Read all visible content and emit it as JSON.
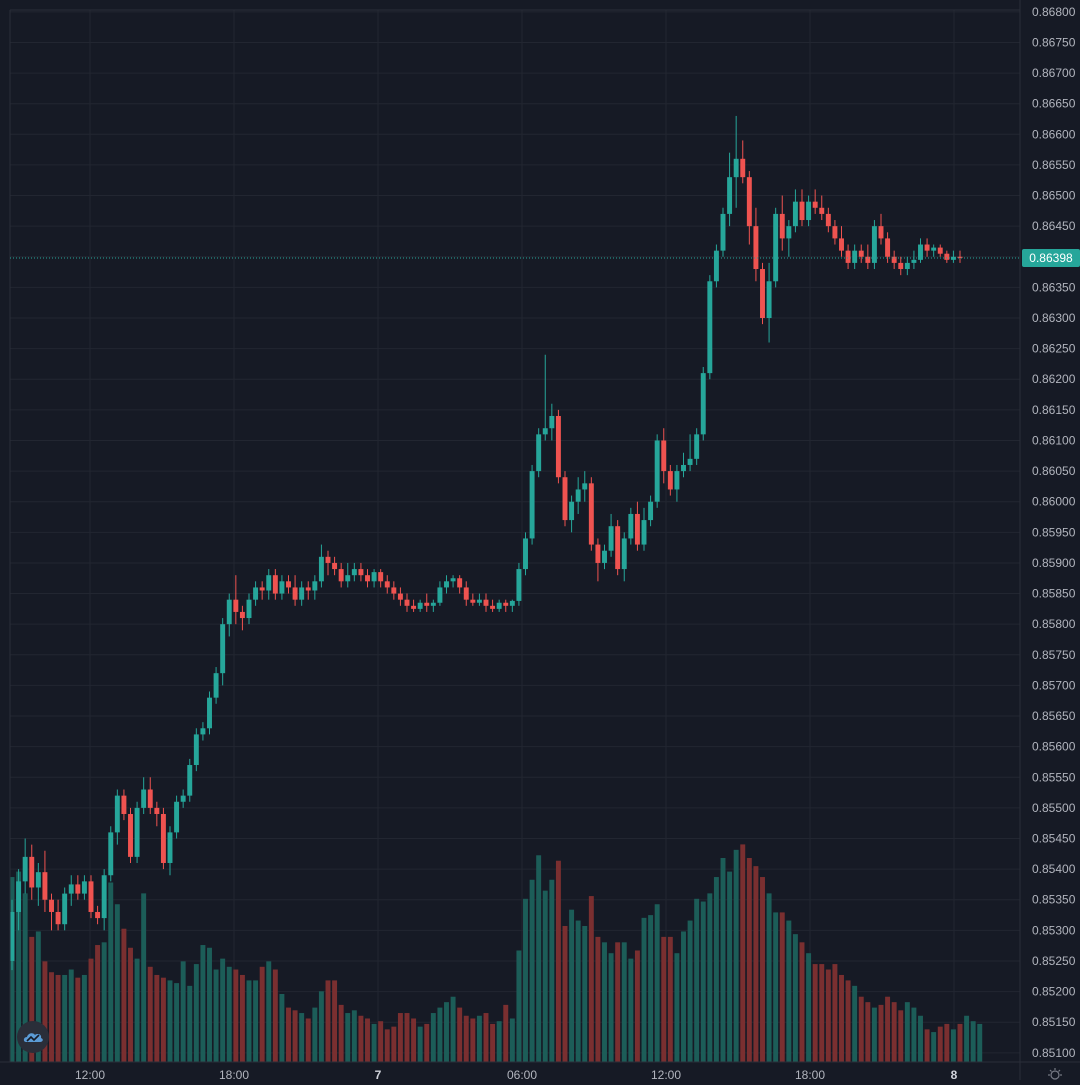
{
  "chart_data": {
    "type": "candlestick",
    "symbol_price_last": "0.86398",
    "x_ticks": [
      "12:00",
      "18:00",
      "7",
      "06:00",
      "12:00",
      "18:00",
      "8"
    ],
    "bold_x_ticks": [
      "7",
      "8"
    ],
    "y_ticks": [
      "0.86800",
      "0.86750",
      "0.86700",
      "0.86650",
      "0.86600",
      "0.86550",
      "0.86500",
      "0.86450",
      "0.86400",
      "0.86350",
      "0.86300",
      "0.86250",
      "0.86200",
      "0.86150",
      "0.86100",
      "0.86050",
      "0.86000",
      "0.85950",
      "0.85900",
      "0.85850",
      "0.85800",
      "0.85750",
      "0.85700",
      "0.85650",
      "0.85600",
      "0.85550",
      "0.85500",
      "0.85450",
      "0.85400",
      "0.85350",
      "0.85300",
      "0.85250",
      "0.85200",
      "0.85150",
      "0.85100"
    ],
    "ylim": [
      0.85085,
      0.86803
    ],
    "price_line": 0.86398,
    "candles": [
      [
        0.8525,
        0.8535,
        0.85235,
        0.8533
      ],
      [
        0.8533,
        0.854,
        0.853,
        0.8538
      ],
      [
        0.8538,
        0.8545,
        0.8536,
        0.8542
      ],
      [
        0.8542,
        0.8544,
        0.8535,
        0.8537
      ],
      [
        0.8537,
        0.8541,
        0.8534,
        0.85395
      ],
      [
        0.85395,
        0.8543,
        0.8533,
        0.8535
      ],
      [
        0.8535,
        0.8536,
        0.853,
        0.8533
      ],
      [
        0.8533,
        0.8535,
        0.853,
        0.8531
      ],
      [
        0.8531,
        0.8537,
        0.853,
        0.8536
      ],
      [
        0.8536,
        0.8539,
        0.8534,
        0.85375
      ],
      [
        0.85375,
        0.8539,
        0.8535,
        0.8536
      ],
      [
        0.8536,
        0.8539,
        0.8535,
        0.8538
      ],
      [
        0.8538,
        0.8539,
        0.8532,
        0.8533
      ],
      [
        0.8533,
        0.8534,
        0.8531,
        0.8532
      ],
      [
        0.8532,
        0.854,
        0.853,
        0.8539
      ],
      [
        0.8539,
        0.8547,
        0.8538,
        0.8546
      ],
      [
        0.8546,
        0.8553,
        0.8544,
        0.8552
      ],
      [
        0.8552,
        0.8553,
        0.8548,
        0.8549
      ],
      [
        0.8549,
        0.855,
        0.8541,
        0.8542
      ],
      [
        0.8542,
        0.8551,
        0.8541,
        0.855
      ],
      [
        0.855,
        0.8555,
        0.8549,
        0.8553
      ],
      [
        0.8553,
        0.8555,
        0.8549,
        0.855
      ],
      [
        0.855,
        0.8551,
        0.8547,
        0.8549
      ],
      [
        0.8549,
        0.855,
        0.854,
        0.8541
      ],
      [
        0.8541,
        0.8547,
        0.8539,
        0.8546
      ],
      [
        0.8546,
        0.8552,
        0.8545,
        0.8551
      ],
      [
        0.8551,
        0.8553,
        0.855,
        0.8552
      ],
      [
        0.8552,
        0.8558,
        0.8551,
        0.8557
      ],
      [
        0.8557,
        0.8563,
        0.8556,
        0.8562
      ],
      [
        0.8562,
        0.8564,
        0.8561,
        0.8563
      ],
      [
        0.8563,
        0.8569,
        0.8562,
        0.8568
      ],
      [
        0.8568,
        0.8573,
        0.8567,
        0.8572
      ],
      [
        0.8572,
        0.8581,
        0.857,
        0.858
      ],
      [
        0.858,
        0.8585,
        0.8578,
        0.8584
      ],
      [
        0.8584,
        0.8588,
        0.858,
        0.8582
      ],
      [
        0.8582,
        0.8583,
        0.8579,
        0.8581
      ],
      [
        0.8581,
        0.8585,
        0.858,
        0.8584
      ],
      [
        0.8584,
        0.8587,
        0.8583,
        0.8586
      ],
      [
        0.8586,
        0.8587,
        0.8584,
        0.85855
      ],
      [
        0.85855,
        0.8589,
        0.8584,
        0.8588
      ],
      [
        0.8588,
        0.8589,
        0.8584,
        0.8585
      ],
      [
        0.8585,
        0.8588,
        0.8584,
        0.8587
      ],
      [
        0.8587,
        0.8588,
        0.8585,
        0.8586
      ],
      [
        0.8586,
        0.8588,
        0.8583,
        0.8584
      ],
      [
        0.8584,
        0.8587,
        0.8583,
        0.8586
      ],
      [
        0.8586,
        0.8587,
        0.8584,
        0.85855
      ],
      [
        0.85855,
        0.8588,
        0.8584,
        0.8587
      ],
      [
        0.8587,
        0.8593,
        0.8586,
        0.8591
      ],
      [
        0.8591,
        0.8592,
        0.8588,
        0.859
      ],
      [
        0.859,
        0.8591,
        0.8588,
        0.8589
      ],
      [
        0.8589,
        0.859,
        0.8586,
        0.8587
      ],
      [
        0.8587,
        0.859,
        0.8586,
        0.8588
      ],
      [
        0.8588,
        0.859,
        0.8587,
        0.8589
      ],
      [
        0.8589,
        0.859,
        0.8587,
        0.8588
      ],
      [
        0.8588,
        0.8589,
        0.8586,
        0.8587
      ],
      [
        0.8587,
        0.8589,
        0.8586,
        0.85885
      ],
      [
        0.85885,
        0.8589,
        0.8586,
        0.8587
      ],
      [
        0.8587,
        0.8588,
        0.8585,
        0.8586
      ],
      [
        0.8586,
        0.8587,
        0.8584,
        0.8585
      ],
      [
        0.8585,
        0.8586,
        0.8583,
        0.8584
      ],
      [
        0.8584,
        0.8585,
        0.8582,
        0.8583
      ],
      [
        0.8583,
        0.8584,
        0.8582,
        0.85825
      ],
      [
        0.85825,
        0.8584,
        0.8582,
        0.85835
      ],
      [
        0.85835,
        0.8585,
        0.8582,
        0.8583
      ],
      [
        0.8583,
        0.8584,
        0.8582,
        0.85835
      ],
      [
        0.85835,
        0.8587,
        0.8583,
        0.8586
      ],
      [
        0.8586,
        0.8588,
        0.8585,
        0.8587
      ],
      [
        0.8587,
        0.8588,
        0.8586,
        0.85875
      ],
      [
        0.85875,
        0.8588,
        0.8585,
        0.8586
      ],
      [
        0.8586,
        0.8587,
        0.8583,
        0.8584
      ],
      [
        0.8584,
        0.8585,
        0.8583,
        0.85835
      ],
      [
        0.85835,
        0.8585,
        0.8583,
        0.8584
      ],
      [
        0.8584,
        0.8585,
        0.8582,
        0.8583
      ],
      [
        0.8583,
        0.8584,
        0.8582,
        0.85825
      ],
      [
        0.85825,
        0.8584,
        0.8582,
        0.85835
      ],
      [
        0.85835,
        0.8584,
        0.8582,
        0.8583
      ],
      [
        0.8583,
        0.8584,
        0.8582,
        0.85838
      ],
      [
        0.85838,
        0.859,
        0.8583,
        0.8589
      ],
      [
        0.8589,
        0.8595,
        0.8588,
        0.8594
      ],
      [
        0.8594,
        0.8606,
        0.8593,
        0.8605
      ],
      [
        0.8605,
        0.8612,
        0.8604,
        0.8611
      ],
      [
        0.8611,
        0.8624,
        0.861,
        0.8612
      ],
      [
        0.8612,
        0.8616,
        0.861,
        0.8614
      ],
      [
        0.8614,
        0.8615,
        0.8603,
        0.8604
      ],
      [
        0.8604,
        0.8605,
        0.8596,
        0.8597
      ],
      [
        0.8597,
        0.8601,
        0.8595,
        0.86
      ],
      [
        0.86,
        0.8604,
        0.8598,
        0.8602
      ],
      [
        0.8602,
        0.8605,
        0.86,
        0.8603
      ],
      [
        0.8603,
        0.8604,
        0.8592,
        0.8593
      ],
      [
        0.8593,
        0.8594,
        0.8587,
        0.859
      ],
      [
        0.859,
        0.8593,
        0.8589,
        0.8592
      ],
      [
        0.8592,
        0.8598,
        0.8591,
        0.8596
      ],
      [
        0.8596,
        0.8597,
        0.8588,
        0.8589
      ],
      [
        0.8589,
        0.8595,
        0.8587,
        0.8594
      ],
      [
        0.8594,
        0.8599,
        0.8593,
        0.8598
      ],
      [
        0.8598,
        0.86,
        0.8592,
        0.8593
      ],
      [
        0.8593,
        0.8599,
        0.8592,
        0.8597
      ],
      [
        0.8597,
        0.8601,
        0.8596,
        0.86
      ],
      [
        0.86,
        0.8611,
        0.8599,
        0.861
      ],
      [
        0.861,
        0.8612,
        0.8603,
        0.8605
      ],
      [
        0.8605,
        0.8606,
        0.8601,
        0.8602
      ],
      [
        0.8602,
        0.8606,
        0.86,
        0.8605
      ],
      [
        0.8605,
        0.8608,
        0.8604,
        0.8606
      ],
      [
        0.8606,
        0.8611,
        0.8605,
        0.8607
      ],
      [
        0.8607,
        0.8612,
        0.8606,
        0.8611
      ],
      [
        0.8611,
        0.8622,
        0.861,
        0.8621
      ],
      [
        0.8621,
        0.8637,
        0.862,
        0.8636
      ],
      [
        0.8636,
        0.8642,
        0.8635,
        0.8641
      ],
      [
        0.8641,
        0.8648,
        0.864,
        0.8647
      ],
      [
        0.8647,
        0.8657,
        0.8645,
        0.8653
      ],
      [
        0.8653,
        0.8663,
        0.8648,
        0.8656
      ],
      [
        0.8656,
        0.8659,
        0.8652,
        0.8653
      ],
      [
        0.8653,
        0.8654,
        0.8642,
        0.8645
      ],
      [
        0.8645,
        0.8648,
        0.8636,
        0.8638
      ],
      [
        0.8638,
        0.8639,
        0.8629,
        0.863
      ],
      [
        0.863,
        0.8639,
        0.8626,
        0.8636
      ],
      [
        0.8636,
        0.8648,
        0.8635,
        0.8647
      ],
      [
        0.8647,
        0.865,
        0.8641,
        0.8643
      ],
      [
        0.8643,
        0.8646,
        0.864,
        0.8645
      ],
      [
        0.8645,
        0.8651,
        0.8644,
        0.8649
      ],
      [
        0.8649,
        0.8651,
        0.8645,
        0.8646
      ],
      [
        0.8646,
        0.865,
        0.8645,
        0.8649
      ],
      [
        0.8649,
        0.8651,
        0.8647,
        0.8648
      ],
      [
        0.8648,
        0.865,
        0.8646,
        0.8647
      ],
      [
        0.8647,
        0.8648,
        0.8644,
        0.8645
      ],
      [
        0.8645,
        0.8646,
        0.8642,
        0.8643
      ],
      [
        0.8643,
        0.8645,
        0.864,
        0.8641
      ],
      [
        0.8641,
        0.8642,
        0.8638,
        0.8639
      ],
      [
        0.8639,
        0.8642,
        0.8638,
        0.8641
      ],
      [
        0.8641,
        0.8642,
        0.8639,
        0.864
      ],
      [
        0.864,
        0.8642,
        0.8638,
        0.8639
      ],
      [
        0.8639,
        0.8646,
        0.8638,
        0.8645
      ],
      [
        0.8645,
        0.8647,
        0.8642,
        0.8643
      ],
      [
        0.8643,
        0.8644,
        0.8639,
        0.864
      ],
      [
        0.864,
        0.8641,
        0.8638,
        0.8639
      ],
      [
        0.8639,
        0.864,
        0.8637,
        0.8638
      ],
      [
        0.8638,
        0.864,
        0.8637,
        0.8639
      ],
      [
        0.8639,
        0.8641,
        0.8638,
        0.86395
      ],
      [
        0.86395,
        0.8643,
        0.8639,
        0.8642
      ],
      [
        0.8642,
        0.8643,
        0.864,
        0.8641
      ],
      [
        0.8641,
        0.8642,
        0.864,
        0.86415
      ],
      [
        0.86415,
        0.8642,
        0.864,
        0.86405
      ],
      [
        0.86405,
        0.8641,
        0.8639,
        0.86395
      ],
      [
        0.86395,
        0.8641,
        0.8639,
        0.864
      ],
      [
        0.864,
        0.8641,
        0.8639,
        0.86398
      ]
    ],
    "volumes": [
      0.68,
      0.7,
      0.62,
      0.46,
      0.48,
      0.37,
      0.33,
      0.32,
      0.32,
      0.34,
      0.31,
      0.32,
      0.38,
      0.43,
      0.44,
      0.66,
      0.58,
      0.49,
      0.42,
      0.38,
      0.62,
      0.35,
      0.32,
      0.31,
      0.3,
      0.29,
      0.37,
      0.28,
      0.36,
      0.43,
      0.42,
      0.34,
      0.38,
      0.35,
      0.34,
      0.32,
      0.3,
      0.3,
      0.35,
      0.37,
      0.34,
      0.25,
      0.2,
      0.19,
      0.18,
      0.16,
      0.2,
      0.26,
      0.3,
      0.3,
      0.21,
      0.18,
      0.19,
      0.17,
      0.16,
      0.14,
      0.15,
      0.12,
      0.13,
      0.18,
      0.18,
      0.16,
      0.13,
      0.14,
      0.18,
      0.2,
      0.22,
      0.24,
      0.2,
      0.17,
      0.16,
      0.17,
      0.18,
      0.14,
      0.15,
      0.21,
      0.16,
      0.41,
      0.6,
      0.67,
      0.76,
      0.63,
      0.67,
      0.74,
      0.5,
      0.56,
      0.52,
      0.5,
      0.61,
      0.46,
      0.44,
      0.4,
      0.44,
      0.44,
      0.38,
      0.41,
      0.53,
      0.54,
      0.58,
      0.46,
      0.46,
      0.4,
      0.48,
      0.52,
      0.6,
      0.59,
      0.62,
      0.68,
      0.75,
      0.7,
      0.78,
      0.8,
      0.75,
      0.72,
      0.68,
      0.62,
      0.55,
      0.55,
      0.52,
      0.47,
      0.44,
      0.4,
      0.36,
      0.36,
      0.34,
      0.36,
      0.32,
      0.3,
      0.28,
      0.24,
      0.22,
      0.2,
      0.21,
      0.24,
      0.22,
      0.19,
      0.22,
      0.2,
      0.17,
      0.12,
      0.11,
      0.13,
      0.14,
      0.12,
      0.14,
      0.17,
      0.15,
      0.14
    ],
    "colors": {
      "up": "#26a69a",
      "down": "#ef5350",
      "up_volume": "#1c5d58",
      "down_volume": "#7a2f30",
      "background": "#161a25",
      "grid": "#222631",
      "axis_text": "#b2b5be",
      "price_label_bg": "#26a69a"
    },
    "grid": true
  },
  "icons": {
    "logo": "tradingview-cloud-logo-icon",
    "settings": "gear-icon"
  }
}
